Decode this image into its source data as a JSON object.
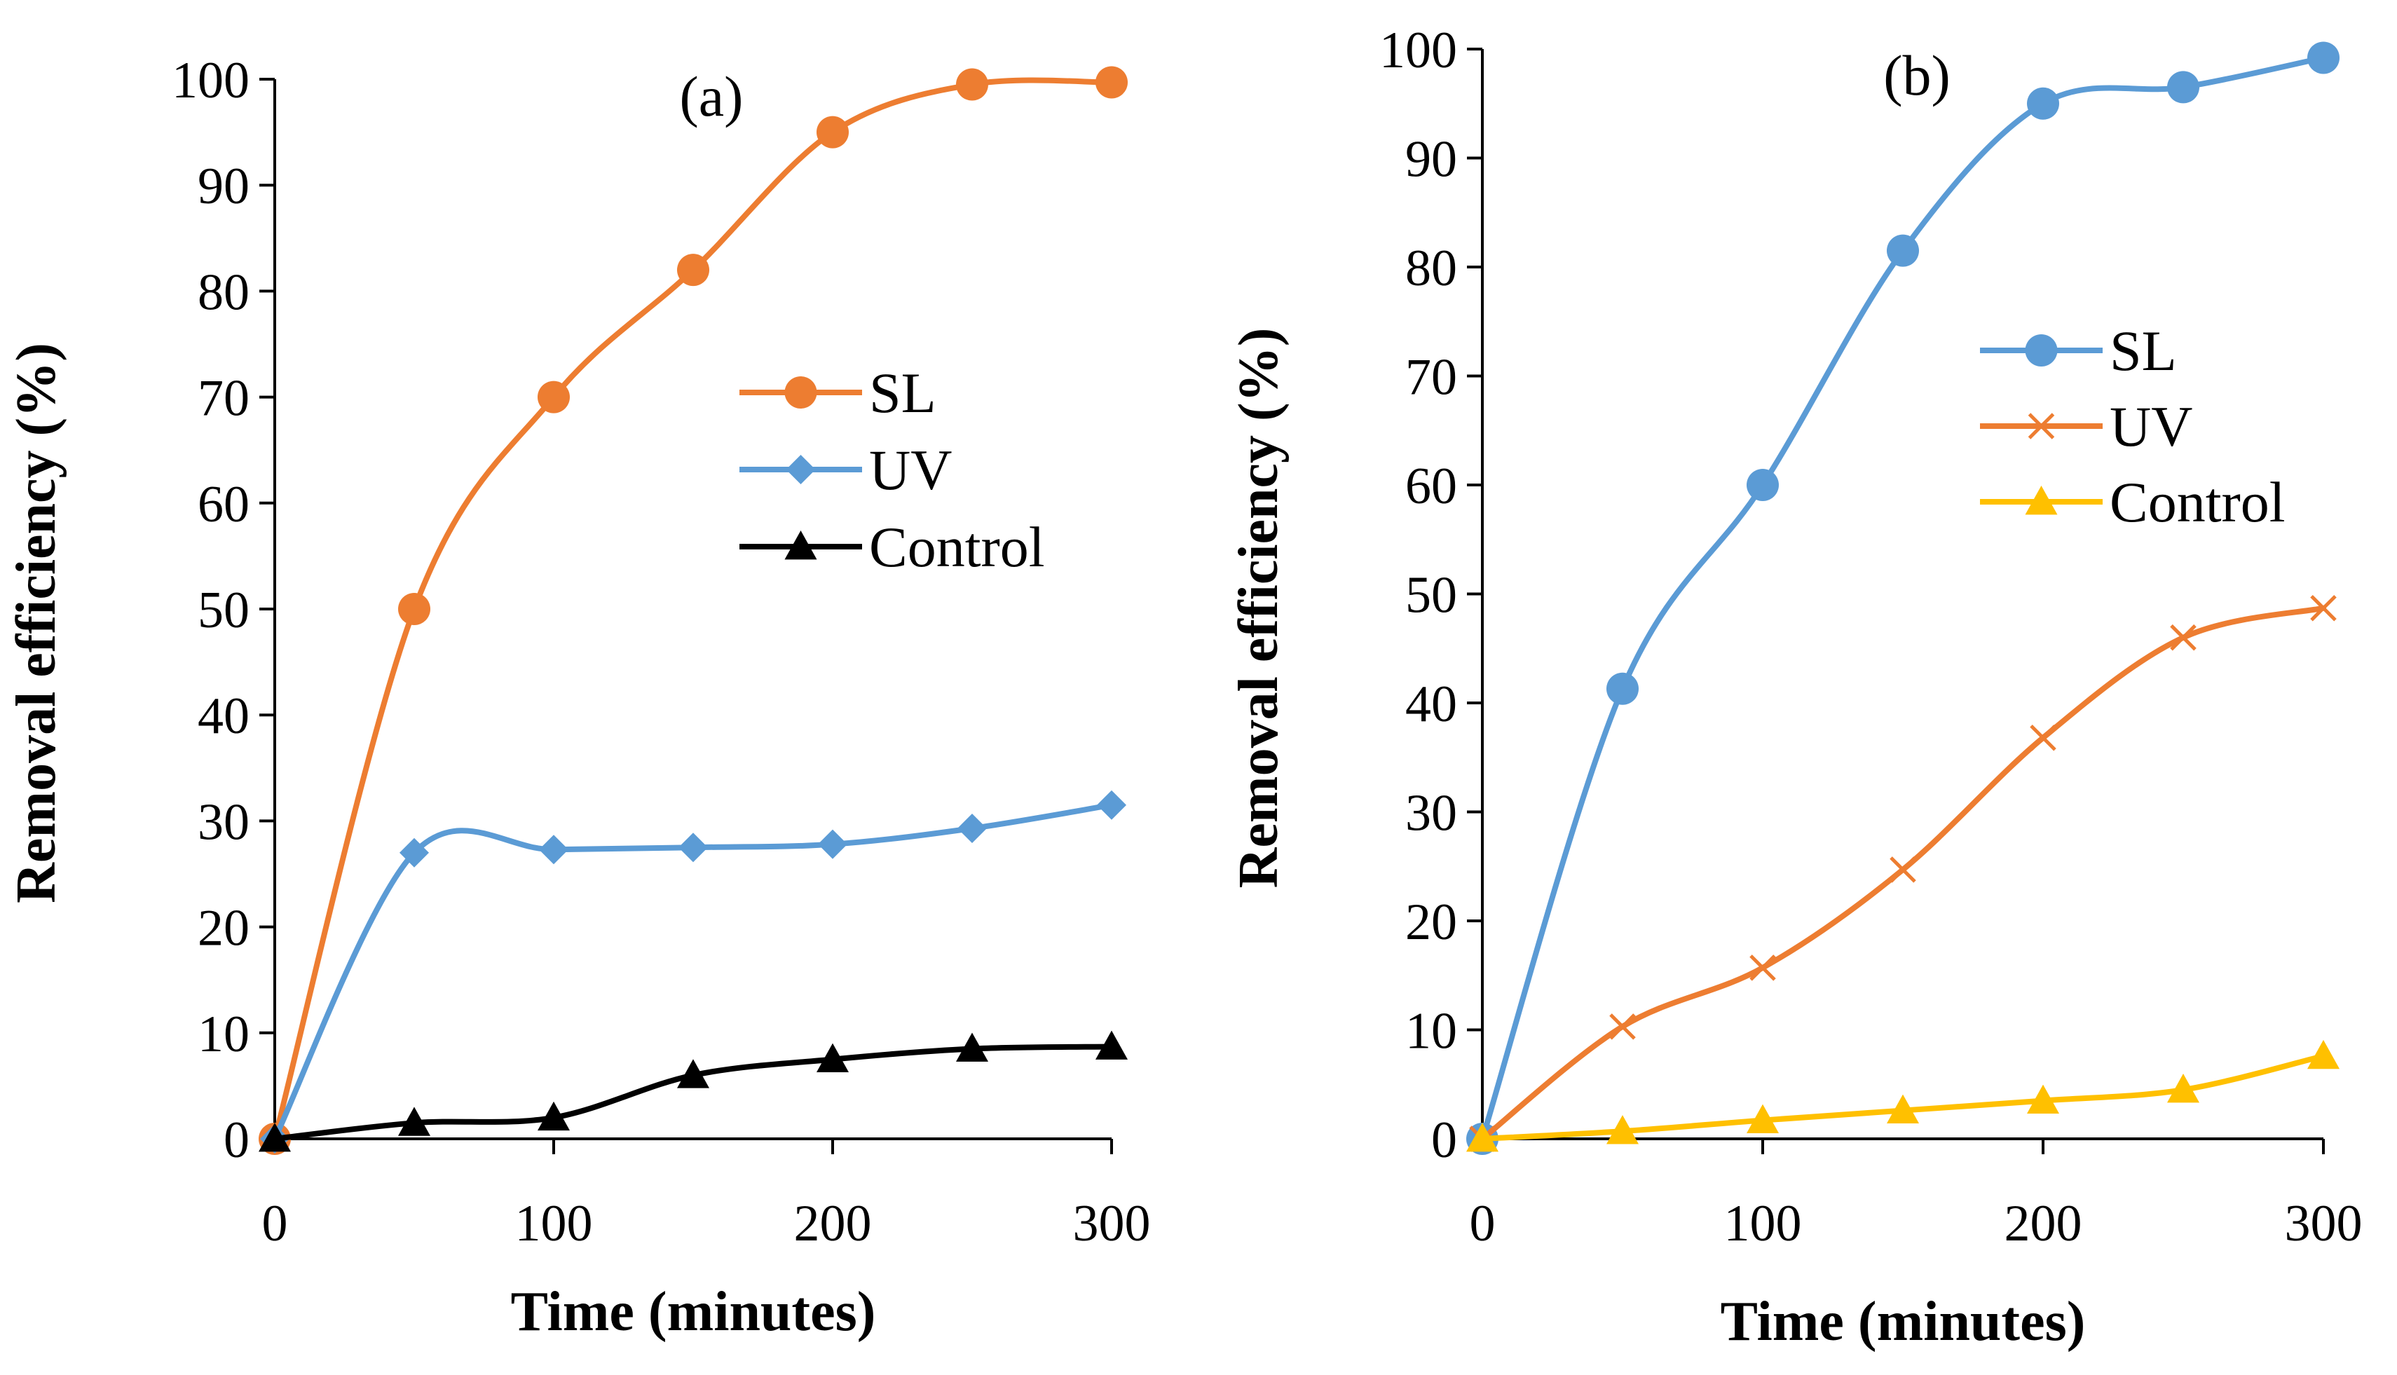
{
  "chart_data": [
    {
      "type": "line",
      "panel_label": "(a)",
      "xlabel": "Time (minutes)",
      "ylabel": "Removal efficiency (%)",
      "xlim": [
        0,
        300
      ],
      "ylim": [
        0,
        100
      ],
      "x_ticks": [
        0,
        100,
        200,
        300
      ],
      "y_ticks": [
        0,
        10,
        20,
        30,
        40,
        50,
        60,
        70,
        80,
        90,
        100
      ],
      "grid": false,
      "legend_position": "center-right",
      "x": [
        0,
        50,
        100,
        150,
        200,
        250,
        300
      ],
      "series": [
        {
          "name": "SL",
          "color": "#ED7D31",
          "marker": "circle",
          "values": [
            0,
            50,
            70,
            82,
            95,
            99.5,
            99.7
          ]
        },
        {
          "name": "UV",
          "color": "#5B9BD5",
          "marker": "diamond",
          "values": [
            0,
            27,
            27.3,
            27.5,
            27.8,
            29.3,
            31.5
          ]
        },
        {
          "name": "Control",
          "color": "#000000",
          "marker": "triangle",
          "values": [
            0,
            1.5,
            2,
            6,
            7.5,
            8.5,
            8.7
          ]
        }
      ]
    },
    {
      "type": "line",
      "panel_label": "(b)",
      "xlabel": "Time (minutes)",
      "ylabel": "Removal efficiency (%)",
      "xlim": [
        0,
        300
      ],
      "ylim": [
        0,
        100
      ],
      "x_ticks": [
        0,
        100,
        200,
        300
      ],
      "y_ticks": [
        0,
        10,
        20,
        30,
        40,
        50,
        60,
        70,
        80,
        90,
        100
      ],
      "grid": false,
      "legend_position": "center-right",
      "x": [
        0,
        50,
        100,
        150,
        200,
        250,
        300
      ],
      "series": [
        {
          "name": "SL",
          "color": "#5B9BD5",
          "marker": "circle",
          "values": [
            0,
            41.3,
            60,
            81.5,
            95,
            96.5,
            99.2
          ]
        },
        {
          "name": "UV",
          "color": "#ED7D31",
          "marker": "x",
          "values": [
            0,
            10.3,
            15.7,
            24.7,
            36.8,
            46,
            48.7
          ]
        },
        {
          "name": "Control",
          "color": "#FFC000",
          "marker": "triangle",
          "values": [
            0,
            0.7,
            1.7,
            2.6,
            3.5,
            4.5,
            7.6
          ]
        }
      ]
    }
  ]
}
